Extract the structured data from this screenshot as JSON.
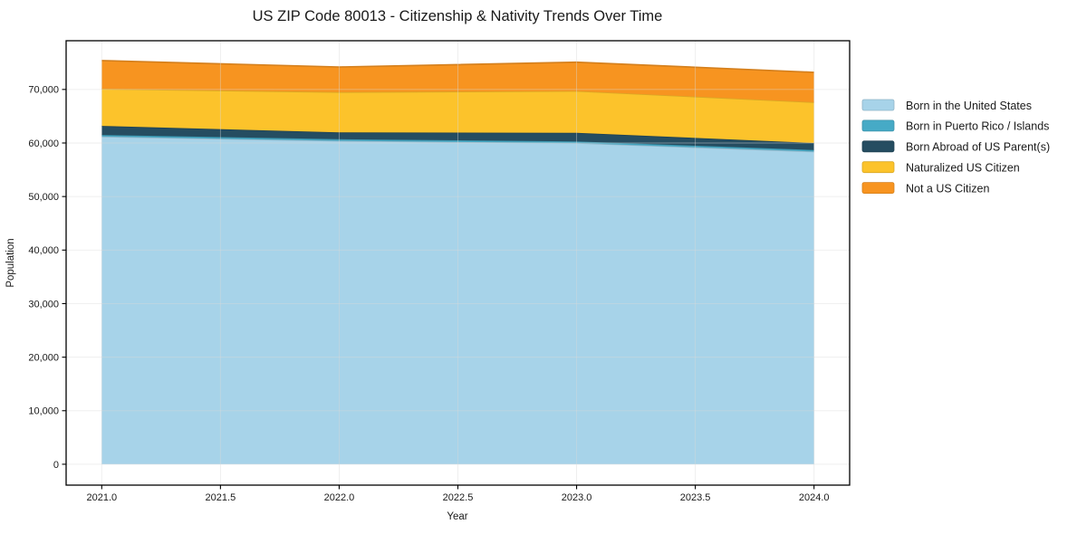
{
  "figure": {
    "background": "#ffffff",
    "frame_color": "#000000",
    "grid_color": "#d9d9d9"
  },
  "chart_data": {
    "type": "area",
    "stacked": true,
    "title": "US ZIP Code 80013 - Citizenship & Nativity Trends Over Time",
    "xlabel": "Year",
    "ylabel": "Population",
    "x": [
      2021,
      2022,
      2023,
      2024
    ],
    "series": [
      {
        "name": "Born in the United States",
        "color": "#a7d3e9",
        "values": [
          61200,
          60400,
          60000,
          58400
        ]
      },
      {
        "name": "Born in Puerto Rico / Islands",
        "color": "#46aac6",
        "values": [
          300,
          300,
          300,
          300
        ]
      },
      {
        "name": "Born Abroad of US Parent(s)",
        "color": "#254d61",
        "values": [
          1700,
          1300,
          1600,
          1300
        ]
      },
      {
        "name": "Naturalized US Citizen",
        "color": "#fcc32b",
        "values": [
          6900,
          7500,
          7800,
          7600
        ]
      },
      {
        "name": "Not a US Citizen",
        "color": "#f79420",
        "values": [
          5300,
          4700,
          5400,
          5600
        ]
      }
    ],
    "totals": [
      75400,
      74200,
      75100,
      73200
    ],
    "xlim": [
      2020.85,
      2024.15
    ],
    "ylim": [
      -3900,
      79100
    ],
    "xticks": [
      2021.0,
      2021.5,
      2022.0,
      2022.5,
      2023.0,
      2023.5,
      2024.0
    ],
    "xtick_labels": [
      "2021.0",
      "2021.5",
      "2022.0",
      "2022.5",
      "2023.0",
      "2023.5",
      "2024.0"
    ],
    "yticks": [
      0,
      10000,
      20000,
      30000,
      40000,
      50000,
      60000,
      70000
    ],
    "ytick_labels": [
      "0",
      "10,000",
      "20,000",
      "30,000",
      "40,000",
      "50,000",
      "60,000",
      "70,000"
    ],
    "grid": true,
    "legend_position": "outside-right"
  }
}
